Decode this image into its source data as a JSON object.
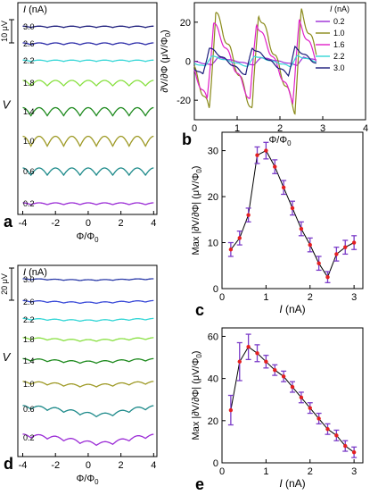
{
  "chart_data": [
    {
      "id": "a",
      "type": "line",
      "panel_letter": "a",
      "xlabel": "Φ/Φ",
      "xlabel_sub": "0",
      "ylabel": "V",
      "xlim": [
        -4.3,
        4.2
      ],
      "xticks": [
        -4,
        -2,
        0,
        2,
        4
      ],
      "xticklabels": [
        "-4",
        "-2",
        "0",
        "2",
        "4"
      ],
      "scalebar_label": "10 μV",
      "current_header": "I (nA)",
      "series": [
        {
          "name": "3.0",
          "color": "#1a1a7a",
          "amplitude": 3,
          "period": 1
        },
        {
          "name": "2.6",
          "color": "#2b2ba8",
          "amplitude": 4,
          "period": 1
        },
        {
          "name": "2.2",
          "color": "#33d6d6",
          "amplitude": 3,
          "period": 1
        },
        {
          "name": "1.8",
          "color": "#88e040",
          "amplitude": 12,
          "period": 1
        },
        {
          "name": "1.4",
          "color": "#1e8a1e",
          "amplitude": 18,
          "period": 1
        },
        {
          "name": "1.0",
          "color": "#9e9a26",
          "amplitude": 22,
          "period": 1
        },
        {
          "name": "0.6",
          "color": "#1d8a8a",
          "amplitude": 16,
          "period": 1
        },
        {
          "name": "0.2",
          "color": "#9b2cd6",
          "amplitude": 4,
          "period": 1
        }
      ]
    },
    {
      "id": "b",
      "type": "line",
      "panel_letter": "b",
      "xlabel": "Φ/Φ",
      "xlabel_sub": "0",
      "ylabel": "∂V/∂Φ (μV/Φ",
      "ylabel_sub": "0",
      "xlim": [
        0,
        4
      ],
      "ylim": [
        -30,
        30
      ],
      "xticks": [
        0,
        1,
        2,
        3,
        4
      ],
      "xticklabels": [
        "0",
        "1",
        "2",
        "3",
        "4"
      ],
      "yticks": [
        -20,
        0,
        20
      ],
      "yticklabels": [
        "-20",
        "0",
        "20"
      ],
      "legend_title": "I (nA)",
      "legend_position": "right",
      "series": [
        {
          "name": "0.2",
          "color": "#9b2cd6",
          "amplitude": 2
        },
        {
          "name": "1.0",
          "color": "#8a8a1a",
          "amplitude": 28
        },
        {
          "name": "1.6",
          "color": "#e020c8",
          "amplitude": 20
        },
        {
          "name": "2.2",
          "color": "#33d6d6",
          "amplitude": 3
        },
        {
          "name": "3.0",
          "color": "#1a1a7a",
          "amplitude": 7
        }
      ]
    },
    {
      "id": "c",
      "type": "scatter",
      "panel_letter": "c",
      "xlabel": "I (nA)",
      "ylabel": "Max |∂V/∂Φ| (μV/Φ",
      "ylabel_sub": "0",
      "xlim": [
        0,
        3.2
      ],
      "ylim": [
        0,
        34
      ],
      "xticks": [
        0,
        1,
        2,
        3
      ],
      "xticklabels": [
        "0",
        "1",
        "2",
        "3"
      ],
      "yticks": [
        0,
        10,
        20,
        30
      ],
      "yticklabels": [
        "0",
        "10",
        "20",
        "30"
      ],
      "x": [
        0.2,
        0.4,
        0.6,
        0.8,
        1.0,
        1.2,
        1.4,
        1.6,
        1.8,
        2.0,
        2.2,
        2.4,
        2.6,
        2.8,
        3.0
      ],
      "y": [
        8.5,
        11,
        16,
        29,
        30,
        26.5,
        22,
        17.5,
        13,
        9.5,
        5.5,
        2.5,
        7.5,
        9,
        10
      ],
      "err": [
        1.5,
        1.5,
        1.5,
        1.8,
        1.8,
        1.5,
        1.5,
        1.5,
        1.5,
        1.5,
        1.5,
        1.2,
        1.5,
        1.5,
        1.5
      ],
      "marker_color": "#e52020",
      "errorbar_color": "#7b3cc8",
      "line_color": "#000000"
    },
    {
      "id": "d",
      "type": "line",
      "panel_letter": "d",
      "xlabel": "Φ/Φ",
      "xlabel_sub": "0",
      "ylabel": "V",
      "xlim": [
        -4.3,
        4.2
      ],
      "xticks": [
        -4,
        -2,
        0,
        2,
        4
      ],
      "xticklabels": [
        "-4",
        "-2",
        "0",
        "2",
        "4"
      ],
      "scalebar_label": "20 μV",
      "current_header": "I (nA)",
      "series": [
        {
          "name": "3.0",
          "color": "#2a3aa8",
          "amplitude": 2,
          "period": 1
        },
        {
          "name": "2.6",
          "color": "#3a4ad8",
          "amplitude": 3,
          "period": 1
        },
        {
          "name": "2.2",
          "color": "#33d6d6",
          "amplitude": 3,
          "period": 1
        },
        {
          "name": "1.8",
          "color": "#88e040",
          "amplitude": 4,
          "period": 1
        },
        {
          "name": "1.4",
          "color": "#1e8a1e",
          "amplitude": 5,
          "period": 1
        },
        {
          "name": "1.0",
          "color": "#9e9a26",
          "amplitude": 6,
          "period": 1
        },
        {
          "name": "0.6",
          "color": "#1d8a8a",
          "amplitude": 8,
          "period": 1
        },
        {
          "name": "0.2",
          "color": "#9b2cd6",
          "amplitude": 8,
          "period": 1
        }
      ]
    },
    {
      "id": "e",
      "type": "scatter",
      "panel_letter": "e",
      "xlabel": "I (nA)",
      "ylabel": "Max |∂V/∂Φ| (μV/Φ",
      "ylabel_sub": "0",
      "xlim": [
        0,
        3.2
      ],
      "ylim": [
        0,
        64
      ],
      "xticks": [
        0,
        1,
        2,
        3
      ],
      "xticklabels": [
        "0",
        "1",
        "2",
        "3"
      ],
      "yticks": [
        0,
        20,
        40,
        60
      ],
      "yticklabels": [
        "0",
        "20",
        "40",
        "60"
      ],
      "x": [
        0.2,
        0.4,
        0.6,
        0.8,
        1.0,
        1.2,
        1.4,
        1.6,
        1.8,
        2.0,
        2.2,
        2.4,
        2.6,
        2.8,
        3.0
      ],
      "y": [
        25,
        48,
        55,
        52,
        48,
        44,
        41,
        36,
        31,
        26,
        21,
        16,
        13,
        8,
        5
      ],
      "err": [
        7,
        9,
        6,
        4,
        3,
        2.5,
        2.5,
        2.5,
        2.5,
        2.5,
        2.5,
        2.5,
        2.5,
        2.5,
        2.5
      ],
      "marker_color": "#e52020",
      "errorbar_color": "#7b3cc8",
      "line_color": "#000000"
    }
  ]
}
